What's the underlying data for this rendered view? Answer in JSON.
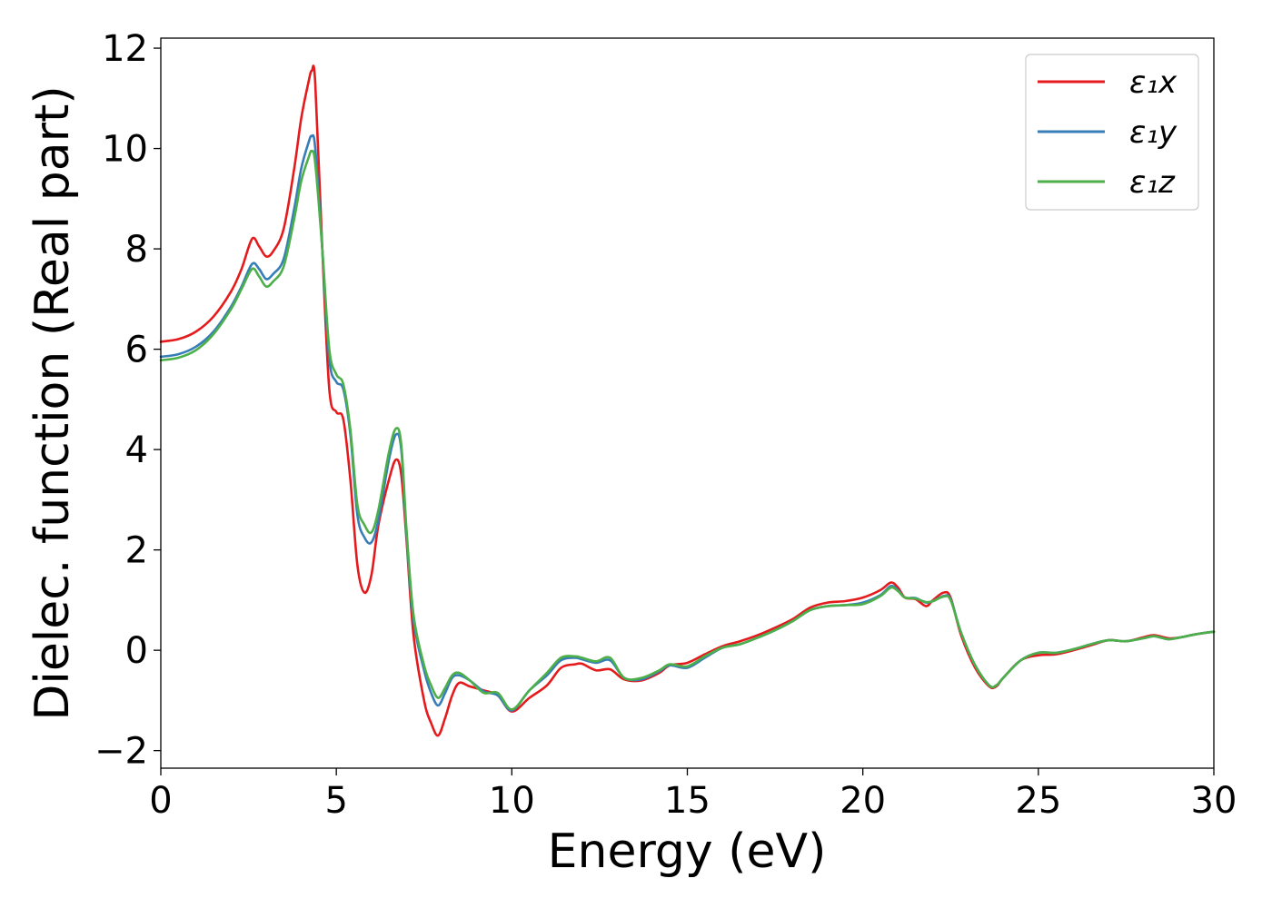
{
  "chart_data": {
    "type": "line",
    "title": "",
    "xlabel": "Energy (eV)",
    "ylabel": "Dielec. function (Real part)",
    "xlim": [
      0,
      30
    ],
    "ylim": [
      -2.35,
      12.2
    ],
    "xticks": [
      0,
      5,
      10,
      15,
      20,
      25,
      30
    ],
    "xtick_labels": [
      "0",
      "5",
      "10",
      "15",
      "20",
      "25",
      "30"
    ],
    "yticks": [
      -2,
      0,
      2,
      4,
      6,
      8,
      10,
      12
    ],
    "ytick_labels": [
      "−2",
      "0",
      "2",
      "4",
      "6",
      "8",
      "10",
      "12"
    ],
    "grid": false,
    "legend_position": "top-right",
    "series": [
      {
        "name": "ε₁x",
        "color": "#e41a1c",
        "points": [
          [
            0,
            6.15
          ],
          [
            0.5,
            6.2
          ],
          [
            1.0,
            6.35
          ],
          [
            1.5,
            6.65
          ],
          [
            2.0,
            7.15
          ],
          [
            2.3,
            7.6
          ],
          [
            2.6,
            8.2
          ],
          [
            2.8,
            8.05
          ],
          [
            3.0,
            7.85
          ],
          [
            3.2,
            7.95
          ],
          [
            3.5,
            8.4
          ],
          [
            3.8,
            9.6
          ],
          [
            4.0,
            10.6
          ],
          [
            4.2,
            11.3
          ],
          [
            4.3,
            11.55
          ],
          [
            4.4,
            11.3
          ],
          [
            4.6,
            8.0
          ],
          [
            4.8,
            5.2
          ],
          [
            5.0,
            4.75
          ],
          [
            5.2,
            4.6
          ],
          [
            5.4,
            3.4
          ],
          [
            5.6,
            1.7
          ],
          [
            5.8,
            1.15
          ],
          [
            6.0,
            1.5
          ],
          [
            6.2,
            2.5
          ],
          [
            6.5,
            3.4
          ],
          [
            6.7,
            3.8
          ],
          [
            6.85,
            3.5
          ],
          [
            7.0,
            2.2
          ],
          [
            7.2,
            0.3
          ],
          [
            7.5,
            -1.0
          ],
          [
            7.7,
            -1.45
          ],
          [
            7.9,
            -1.7
          ],
          [
            8.1,
            -1.35
          ],
          [
            8.3,
            -0.9
          ],
          [
            8.5,
            -0.65
          ],
          [
            8.8,
            -0.72
          ],
          [
            9.2,
            -0.8
          ],
          [
            9.6,
            -0.9
          ],
          [
            10.0,
            -1.22
          ],
          [
            10.5,
            -0.95
          ],
          [
            11.0,
            -0.7
          ],
          [
            11.4,
            -0.35
          ],
          [
            11.8,
            -0.28
          ],
          [
            12.0,
            -0.27
          ],
          [
            12.4,
            -0.4
          ],
          [
            12.8,
            -0.38
          ],
          [
            13.2,
            -0.58
          ],
          [
            13.7,
            -0.6
          ],
          [
            14.2,
            -0.45
          ],
          [
            14.5,
            -0.3
          ],
          [
            15.0,
            -0.25
          ],
          [
            15.5,
            -0.08
          ],
          [
            16.0,
            0.08
          ],
          [
            16.5,
            0.18
          ],
          [
            17.0,
            0.3
          ],
          [
            17.5,
            0.45
          ],
          [
            18.0,
            0.62
          ],
          [
            18.5,
            0.85
          ],
          [
            19.0,
            0.95
          ],
          [
            19.5,
            0.98
          ],
          [
            20.0,
            1.05
          ],
          [
            20.5,
            1.2
          ],
          [
            20.8,
            1.35
          ],
          [
            21.0,
            1.25
          ],
          [
            21.2,
            1.05
          ],
          [
            21.5,
            1.02
          ],
          [
            21.8,
            0.88
          ],
          [
            22.0,
            1.0
          ],
          [
            22.3,
            1.15
          ],
          [
            22.5,
            1.05
          ],
          [
            22.8,
            0.3
          ],
          [
            23.2,
            -0.35
          ],
          [
            23.6,
            -0.72
          ],
          [
            23.8,
            -0.72
          ],
          [
            24.0,
            -0.55
          ],
          [
            24.5,
            -0.2
          ],
          [
            25.0,
            -0.1
          ],
          [
            25.5,
            -0.08
          ],
          [
            26.0,
            0.0
          ],
          [
            26.5,
            0.1
          ],
          [
            27.0,
            0.2
          ],
          [
            27.5,
            0.18
          ],
          [
            28.0,
            0.26
          ],
          [
            28.3,
            0.3
          ],
          [
            28.7,
            0.24
          ],
          [
            29.0,
            0.25
          ],
          [
            29.5,
            0.32
          ],
          [
            30.0,
            0.37
          ]
        ]
      },
      {
        "name": "ε₁y",
        "color": "#377eb8",
        "points": [
          [
            0,
            5.85
          ],
          [
            0.5,
            5.9
          ],
          [
            1.0,
            6.05
          ],
          [
            1.5,
            6.35
          ],
          [
            2.0,
            6.85
          ],
          [
            2.3,
            7.25
          ],
          [
            2.6,
            7.7
          ],
          [
            2.8,
            7.6
          ],
          [
            3.0,
            7.4
          ],
          [
            3.2,
            7.5
          ],
          [
            3.5,
            7.8
          ],
          [
            3.8,
            8.8
          ],
          [
            4.0,
            9.6
          ],
          [
            4.2,
            10.1
          ],
          [
            4.3,
            10.25
          ],
          [
            4.4,
            10.0
          ],
          [
            4.6,
            8.0
          ],
          [
            4.8,
            5.8
          ],
          [
            5.0,
            5.35
          ],
          [
            5.2,
            5.2
          ],
          [
            5.4,
            4.3
          ],
          [
            5.6,
            2.7
          ],
          [
            5.8,
            2.25
          ],
          [
            6.0,
            2.15
          ],
          [
            6.2,
            2.6
          ],
          [
            6.5,
            3.8
          ],
          [
            6.7,
            4.3
          ],
          [
            6.85,
            4.0
          ],
          [
            7.0,
            2.3
          ],
          [
            7.2,
            0.6
          ],
          [
            7.5,
            -0.4
          ],
          [
            7.7,
            -0.85
          ],
          [
            7.9,
            -1.1
          ],
          [
            8.1,
            -0.85
          ],
          [
            8.3,
            -0.55
          ],
          [
            8.5,
            -0.5
          ],
          [
            8.8,
            -0.6
          ],
          [
            9.2,
            -0.82
          ],
          [
            9.6,
            -0.9
          ],
          [
            10.0,
            -1.2
          ],
          [
            10.5,
            -0.8
          ],
          [
            11.0,
            -0.5
          ],
          [
            11.4,
            -0.2
          ],
          [
            11.8,
            -0.15
          ],
          [
            12.0,
            -0.18
          ],
          [
            12.4,
            -0.25
          ],
          [
            12.8,
            -0.2
          ],
          [
            13.2,
            -0.55
          ],
          [
            13.7,
            -0.58
          ],
          [
            14.2,
            -0.42
          ],
          [
            14.5,
            -0.3
          ],
          [
            15.0,
            -0.35
          ],
          [
            15.5,
            -0.15
          ],
          [
            16.0,
            0.05
          ],
          [
            16.5,
            0.12
          ],
          [
            17.0,
            0.25
          ],
          [
            17.5,
            0.4
          ],
          [
            18.0,
            0.58
          ],
          [
            18.5,
            0.8
          ],
          [
            19.0,
            0.88
          ],
          [
            19.5,
            0.9
          ],
          [
            20.0,
            0.95
          ],
          [
            20.5,
            1.1
          ],
          [
            20.8,
            1.28
          ],
          [
            21.0,
            1.2
          ],
          [
            21.2,
            1.05
          ],
          [
            21.5,
            1.04
          ],
          [
            21.8,
            0.95
          ],
          [
            22.0,
            0.98
          ],
          [
            22.3,
            1.08
          ],
          [
            22.5,
            1.02
          ],
          [
            22.8,
            0.35
          ],
          [
            23.2,
            -0.3
          ],
          [
            23.6,
            -0.7
          ],
          [
            23.8,
            -0.7
          ],
          [
            24.0,
            -0.55
          ],
          [
            24.5,
            -0.2
          ],
          [
            25.0,
            -0.05
          ],
          [
            25.5,
            -0.05
          ],
          [
            26.0,
            0.02
          ],
          [
            26.5,
            0.12
          ],
          [
            27.0,
            0.2
          ],
          [
            27.5,
            0.18
          ],
          [
            28.0,
            0.24
          ],
          [
            28.3,
            0.28
          ],
          [
            28.7,
            0.22
          ],
          [
            29.0,
            0.25
          ],
          [
            29.5,
            0.32
          ],
          [
            30.0,
            0.37
          ]
        ]
      },
      {
        "name": "ε₁z",
        "color": "#4daf4a",
        "points": [
          [
            0,
            5.78
          ],
          [
            0.5,
            5.83
          ],
          [
            1.0,
            5.98
          ],
          [
            1.5,
            6.3
          ],
          [
            2.0,
            6.8
          ],
          [
            2.3,
            7.2
          ],
          [
            2.6,
            7.6
          ],
          [
            2.8,
            7.45
          ],
          [
            3.0,
            7.25
          ],
          [
            3.2,
            7.35
          ],
          [
            3.5,
            7.65
          ],
          [
            3.8,
            8.6
          ],
          [
            4.0,
            9.35
          ],
          [
            4.2,
            9.8
          ],
          [
            4.3,
            9.95
          ],
          [
            4.4,
            9.7
          ],
          [
            4.6,
            8.0
          ],
          [
            4.8,
            6.0
          ],
          [
            5.0,
            5.5
          ],
          [
            5.2,
            5.3
          ],
          [
            5.4,
            4.4
          ],
          [
            5.6,
            2.9
          ],
          [
            5.8,
            2.5
          ],
          [
            6.0,
            2.35
          ],
          [
            6.2,
            2.8
          ],
          [
            6.5,
            3.95
          ],
          [
            6.7,
            4.42
          ],
          [
            6.85,
            4.1
          ],
          [
            7.0,
            2.4
          ],
          [
            7.2,
            0.7
          ],
          [
            7.5,
            -0.3
          ],
          [
            7.7,
            -0.7
          ],
          [
            7.9,
            -0.95
          ],
          [
            8.1,
            -0.75
          ],
          [
            8.3,
            -0.5
          ],
          [
            8.5,
            -0.45
          ],
          [
            8.8,
            -0.6
          ],
          [
            9.2,
            -0.85
          ],
          [
            9.6,
            -0.85
          ],
          [
            10.0,
            -1.18
          ],
          [
            10.5,
            -0.8
          ],
          [
            11.0,
            -0.45
          ],
          [
            11.4,
            -0.15
          ],
          [
            11.8,
            -0.12
          ],
          [
            12.0,
            -0.15
          ],
          [
            12.4,
            -0.22
          ],
          [
            12.8,
            -0.15
          ],
          [
            13.2,
            -0.55
          ],
          [
            13.7,
            -0.55
          ],
          [
            14.2,
            -0.4
          ],
          [
            14.5,
            -0.28
          ],
          [
            15.0,
            -0.32
          ],
          [
            15.5,
            -0.12
          ],
          [
            16.0,
            0.05
          ],
          [
            16.5,
            0.12
          ],
          [
            17.0,
            0.25
          ],
          [
            17.5,
            0.4
          ],
          [
            18.0,
            0.58
          ],
          [
            18.5,
            0.8
          ],
          [
            19.0,
            0.88
          ],
          [
            19.5,
            0.9
          ],
          [
            20.0,
            0.92
          ],
          [
            20.5,
            1.08
          ],
          [
            20.8,
            1.25
          ],
          [
            21.0,
            1.18
          ],
          [
            21.2,
            1.05
          ],
          [
            21.5,
            1.03
          ],
          [
            21.8,
            0.96
          ],
          [
            22.0,
            0.98
          ],
          [
            22.3,
            1.07
          ],
          [
            22.5,
            1.0
          ],
          [
            22.8,
            0.35
          ],
          [
            23.2,
            -0.3
          ],
          [
            23.6,
            -0.7
          ],
          [
            23.8,
            -0.7
          ],
          [
            24.0,
            -0.55
          ],
          [
            24.5,
            -0.2
          ],
          [
            25.0,
            -0.05
          ],
          [
            25.5,
            -0.05
          ],
          [
            26.0,
            0.02
          ],
          [
            26.5,
            0.12
          ],
          [
            27.0,
            0.2
          ],
          [
            27.5,
            0.18
          ],
          [
            28.0,
            0.24
          ],
          [
            28.3,
            0.28
          ],
          [
            28.7,
            0.22
          ],
          [
            29.0,
            0.25
          ],
          [
            29.5,
            0.32
          ],
          [
            30.0,
            0.37
          ]
        ]
      }
    ]
  }
}
